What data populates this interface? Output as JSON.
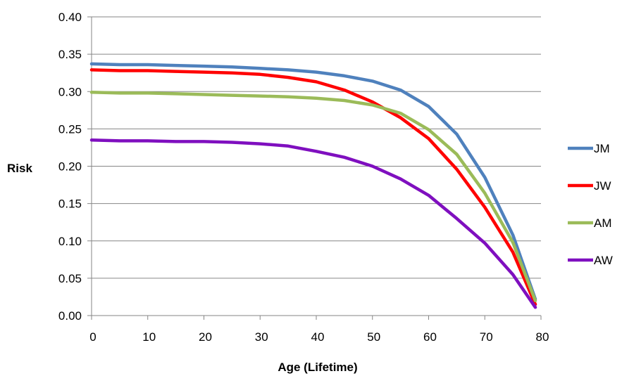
{
  "chart_data": {
    "type": "line",
    "title": "",
    "xlabel": "Age (Lifetime)",
    "ylabel": "Risk",
    "xlim": [
      0,
      80
    ],
    "ylim": [
      0,
      0.4
    ],
    "x_ticks": [
      "0",
      "10",
      "20",
      "30",
      "40",
      "50",
      "60",
      "70",
      "80"
    ],
    "y_ticks": [
      "0.00",
      "0.05",
      "0.10",
      "0.15",
      "0.20",
      "0.25",
      "0.30",
      "0.35",
      "0.40"
    ],
    "grid": true,
    "legend_position": "right",
    "x": [
      0,
      5,
      10,
      15,
      20,
      25,
      30,
      35,
      40,
      45,
      50,
      55,
      60,
      65,
      70,
      75,
      79
    ],
    "series": [
      {
        "name": "JM",
        "color": "#4F81BD",
        "values": [
          0.337,
          0.336,
          0.336,
          0.335,
          0.334,
          0.333,
          0.331,
          0.329,
          0.326,
          0.321,
          0.314,
          0.302,
          0.28,
          0.243,
          0.185,
          0.108,
          0.022
        ]
      },
      {
        "name": "JW",
        "color": "#FF0000",
        "values": [
          0.329,
          0.328,
          0.328,
          0.327,
          0.326,
          0.325,
          0.323,
          0.319,
          0.313,
          0.302,
          0.286,
          0.265,
          0.237,
          0.196,
          0.145,
          0.085,
          0.015
        ]
      },
      {
        "name": "AM",
        "color": "#9BBB59",
        "values": [
          0.299,
          0.298,
          0.298,
          0.297,
          0.296,
          0.295,
          0.294,
          0.293,
          0.291,
          0.288,
          0.282,
          0.271,
          0.249,
          0.216,
          0.164,
          0.098,
          0.02
        ]
      },
      {
        "name": "AW",
        "color": "#7F0FBF",
        "values": [
          0.235,
          0.234,
          0.234,
          0.233,
          0.233,
          0.232,
          0.23,
          0.227,
          0.22,
          0.212,
          0.2,
          0.183,
          0.161,
          0.13,
          0.097,
          0.055,
          0.011
        ]
      }
    ]
  }
}
